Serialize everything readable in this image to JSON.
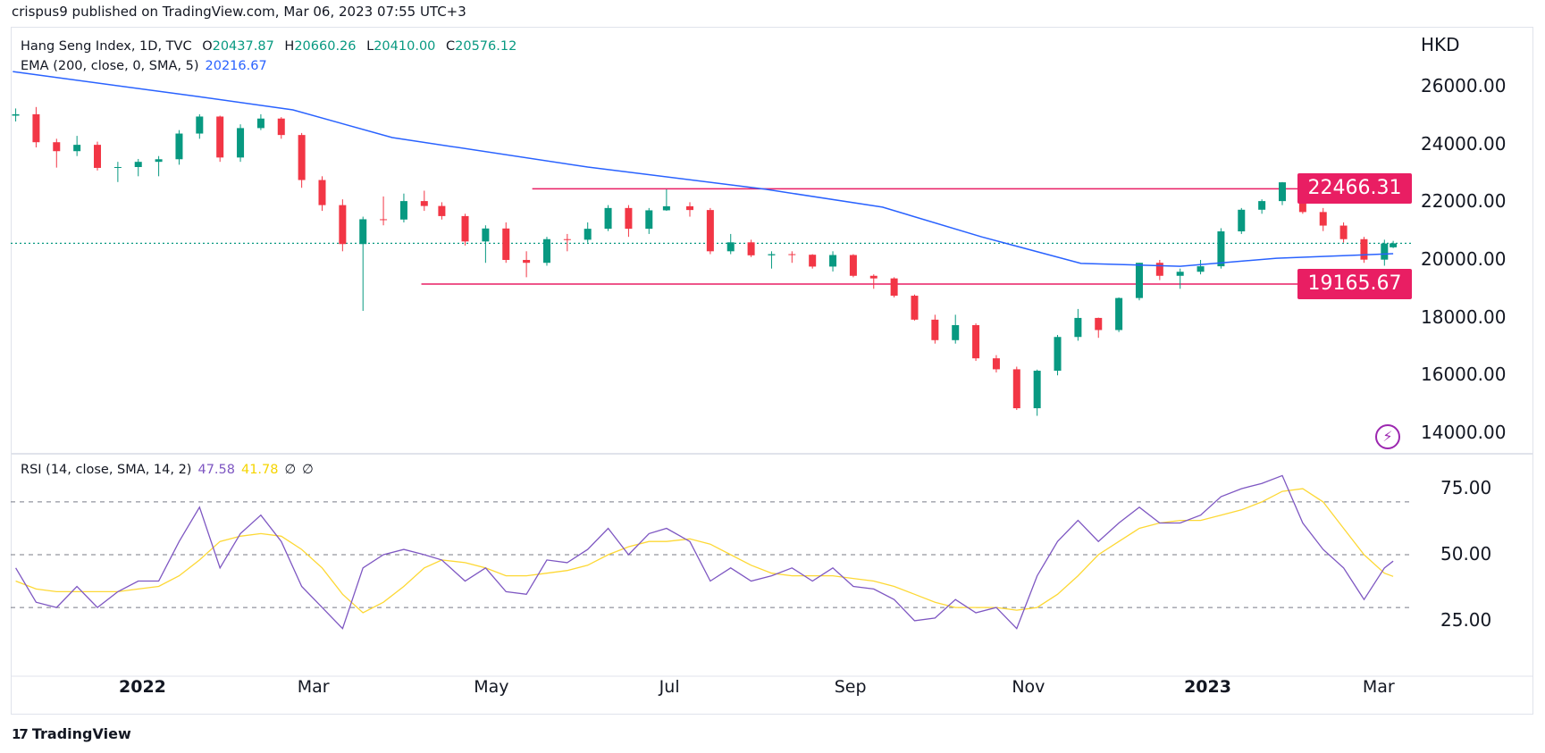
{
  "header": {
    "published": "crispus9 published on TradingView.com, Mar 06, 2023 07:55 UTC+3"
  },
  "legend": {
    "symbol": "Hang Seng Index, 1D, TVC",
    "o_label": "O",
    "o": "20437.87",
    "h_label": "H",
    "h": "20660.26",
    "l_label": "L",
    "l": "20410.00",
    "c_label": "C",
    "c": "20576.12",
    "ema_label": "EMA (200, close, 0, SMA, 5)",
    "ema_value": "20216.67",
    "rsi_label": "RSI (14, close, SMA, 14, 2)",
    "rsi_value": "47.58",
    "rsi_ma_value": "41.78",
    "rsi_extra1": "∅",
    "rsi_extra2": "∅"
  },
  "footer": {
    "brand": "TradingView"
  },
  "colors": {
    "up": "#089981",
    "down": "#f23645",
    "ema": "#2962ff",
    "level": "#e91e63",
    "rsi": "#7e57c2",
    "rsi_ma": "#fdd835",
    "last": "#089981"
  },
  "icons": {
    "lightning": "lightning-icon",
    "logo": "tradingview-logo"
  },
  "chart_data": [
    {
      "type": "candlestick",
      "currency": "HKD",
      "price_ticks": [
        "26000.00",
        "24000.00",
        "22000.00",
        "20000.00",
        "18000.00",
        "16000.00",
        "14000.00"
      ],
      "ylim": [
        13800,
        27000
      ],
      "time_ticks": [
        {
          "label": "2022",
          "date": "2022-01-01",
          "bold": true
        },
        {
          "label": "Mar",
          "date": "2022-03-01"
        },
        {
          "label": "May",
          "date": "2022-05-01"
        },
        {
          "label": "Jul",
          "date": "2022-07-01"
        },
        {
          "label": "Sep",
          "date": "2022-09-01"
        },
        {
          "label": "Nov",
          "date": "2022-11-01"
        },
        {
          "label": "2023",
          "date": "2023-01-01",
          "bold": true
        },
        {
          "label": "Mar",
          "date": "2023-03-01"
        }
      ],
      "candles_ohlc": [
        [
          "2021-11-19",
          25000,
          25250,
          24800,
          25050
        ],
        [
          "2021-11-26",
          25050,
          25300,
          23900,
          24080
        ],
        [
          "2021-12-03",
          24080,
          24200,
          23200,
          23770
        ],
        [
          "2021-12-10",
          23770,
          24300,
          23600,
          23990
        ],
        [
          "2021-12-17",
          23990,
          24100,
          23100,
          23190
        ],
        [
          "2021-12-24",
          23190,
          23400,
          22700,
          23220
        ],
        [
          "2021-12-31",
          23220,
          23500,
          22900,
          23400
        ],
        [
          "2022-01-07",
          23400,
          23600,
          22900,
          23490
        ],
        [
          "2022-01-14",
          23490,
          24500,
          23300,
          24380
        ],
        [
          "2022-01-21",
          24380,
          25050,
          24200,
          24970
        ],
        [
          "2022-01-28",
          24970,
          25000,
          23400,
          23550
        ],
        [
          "2022-02-04",
          23550,
          24700,
          23400,
          24570
        ],
        [
          "2022-02-11",
          24570,
          25050,
          24500,
          24900
        ],
        [
          "2022-02-18",
          24900,
          24950,
          24200,
          24330
        ],
        [
          "2022-02-25",
          24330,
          24400,
          22500,
          22770
        ],
        [
          "2022-03-04",
          22770,
          22900,
          21700,
          21900
        ],
        [
          "2022-03-11",
          21900,
          22100,
          20300,
          20550
        ],
        [
          "2022-03-18",
          20550,
          21500,
          18235,
          21410
        ],
        [
          "2022-03-25",
          21410,
          22200,
          21200,
          21400
        ],
        [
          "2022-04-01",
          21400,
          22300,
          21300,
          22040
        ],
        [
          "2022-04-08",
          22040,
          22400,
          21700,
          21870
        ],
        [
          "2022-04-14",
          21870,
          22000,
          21400,
          21520
        ],
        [
          "2022-04-22",
          21520,
          21600,
          20500,
          20640
        ],
        [
          "2022-04-29",
          20640,
          21200,
          19900,
          21090
        ],
        [
          "2022-05-06",
          21090,
          21300,
          19900,
          20000
        ],
        [
          "2022-05-13",
          20000,
          20300,
          19400,
          19900
        ],
        [
          "2022-05-20",
          19900,
          20800,
          19800,
          20720
        ],
        [
          "2022-05-27",
          20720,
          20900,
          20300,
          20700
        ],
        [
          "2022-06-03",
          20700,
          21300,
          20600,
          21080
        ],
        [
          "2022-06-10",
          21080,
          21900,
          21000,
          21800
        ],
        [
          "2022-06-17",
          21800,
          21900,
          20800,
          21080
        ],
        [
          "2022-06-24",
          21080,
          21800,
          20900,
          21720
        ],
        [
          "2022-06-30",
          21720,
          22450,
          21700,
          21860
        ],
        [
          "2022-07-08",
          21860,
          22000,
          21500,
          21730
        ],
        [
          "2022-07-15",
          21730,
          21800,
          20200,
          20300
        ],
        [
          "2022-07-22",
          20300,
          20900,
          20200,
          20610
        ],
        [
          "2022-07-29",
          20610,
          20700,
          20100,
          20160
        ],
        [
          "2022-08-05",
          20160,
          20300,
          19700,
          20200
        ],
        [
          "2022-08-12",
          20200,
          20300,
          19900,
          20180
        ],
        [
          "2022-08-19",
          20180,
          20200,
          19700,
          19770
        ],
        [
          "2022-08-26",
          19770,
          20300,
          19600,
          20170
        ],
        [
          "2022-09-02",
          20170,
          20200,
          19400,
          19450
        ],
        [
          "2022-09-09",
          19450,
          19500,
          19000,
          19360
        ],
        [
          "2022-09-16",
          19360,
          19400,
          18700,
          18760
        ],
        [
          "2022-09-23",
          18760,
          18800,
          17900,
          17930
        ],
        [
          "2022-09-30",
          17930,
          18100,
          17100,
          17220
        ],
        [
          "2022-10-07",
          17220,
          18100,
          17100,
          17740
        ],
        [
          "2022-10-14",
          17740,
          17800,
          16500,
          16590
        ],
        [
          "2022-10-21",
          16590,
          16700,
          16100,
          16210
        ],
        [
          "2022-10-28",
          16210,
          16300,
          14800,
          14860
        ],
        [
          "2022-11-04",
          14860,
          16200,
          14597,
          16160
        ],
        [
          "2022-11-11",
          16160,
          17400,
          16000,
          17330
        ],
        [
          "2022-11-18",
          17330,
          18300,
          17200,
          17990
        ],
        [
          "2022-11-25",
          17990,
          18000,
          17300,
          17570
        ],
        [
          "2022-12-02",
          17570,
          18700,
          17500,
          18680
        ],
        [
          "2022-12-09",
          18680,
          19900,
          18600,
          19900
        ],
        [
          "2022-12-16",
          19900,
          20000,
          19300,
          19450
        ],
        [
          "2022-12-23",
          19450,
          19700,
          19000,
          19590
        ],
        [
          "2022-12-30",
          19590,
          20000,
          19500,
          19780
        ],
        [
          "2023-01-06",
          19780,
          21100,
          19700,
          20990
        ],
        [
          "2023-01-13",
          20990,
          21800,
          20900,
          21740
        ],
        [
          "2023-01-20",
          21740,
          22100,
          21600,
          22040
        ],
        [
          "2023-01-27",
          22040,
          22700,
          21900,
          22690
        ],
        [
          "2023-02-03",
          22690,
          22700,
          21600,
          21660
        ],
        [
          "2023-02-10",
          21660,
          21800,
          21000,
          21190
        ],
        [
          "2023-02-17",
          21190,
          21300,
          20600,
          20720
        ],
        [
          "2023-02-24",
          20720,
          20800,
          19900,
          20010
        ],
        [
          "2023-03-03",
          20010,
          20700,
          19800,
          20570
        ],
        [
          "2023-03-06",
          20437.87,
          20660.26,
          20410,
          20576.12
        ]
      ],
      "ema_200": [
        [
          "2021-11-18",
          26530
        ],
        [
          "2022-01-20",
          25670
        ],
        [
          "2022-02-22",
          25200
        ],
        [
          "2022-03-28",
          24240
        ],
        [
          "2022-06-03",
          23220
        ],
        [
          "2022-08-03",
          22450
        ],
        [
          "2022-09-12",
          21830
        ],
        [
          "2022-10-16",
          20800
        ],
        [
          "2022-11-19",
          19880
        ],
        [
          "2022-12-23",
          19780
        ],
        [
          "2023-01-25",
          20060
        ],
        [
          "2023-03-06",
          20216.67
        ]
      ],
      "horizontal_levels": [
        {
          "value": 22466.31,
          "label": "22466.31",
          "from": "2022-05-15"
        },
        {
          "value": 19165.67,
          "label": "19165.67",
          "from": "2022-04-07"
        }
      ],
      "last_price": 20576.12
    },
    {
      "type": "line",
      "title": "RSI (14, close, SMA, 14, 2)",
      "ticks": [
        "75.00",
        "50.00",
        "25.00"
      ],
      "bands": [
        70,
        50,
        30
      ],
      "ylim": [
        12,
        88
      ],
      "rsi": [
        45,
        32,
        30,
        38,
        30,
        36,
        40,
        40,
        55,
        68,
        45,
        58,
        65,
        55,
        38,
        30,
        22,
        45,
        50,
        52,
        50,
        48,
        40,
        45,
        36,
        35,
        48,
        47,
        52,
        60,
        50,
        58,
        60,
        55,
        40,
        45,
        40,
        42,
        45,
        40,
        45,
        38,
        37,
        33,
        25,
        26,
        33,
        28,
        30,
        22,
        42,
        55,
        63,
        55,
        62,
        68,
        62,
        62,
        65,
        72,
        75,
        77,
        80,
        62,
        52,
        45,
        33,
        45,
        47.58
      ],
      "rsi_ma": [
        40,
        37,
        36,
        36,
        36,
        36,
        37,
        38,
        42,
        48,
        55,
        57,
        58,
        57,
        52,
        45,
        35,
        28,
        32,
        38,
        45,
        48,
        47,
        45,
        42,
        42,
        43,
        44,
        46,
        50,
        53,
        55,
        55,
        56,
        54,
        50,
        46,
        43,
        42,
        42,
        42,
        41,
        40,
        38,
        35,
        32,
        30,
        30,
        30,
        29,
        30,
        35,
        42,
        50,
        55,
        60,
        62,
        63,
        63,
        65,
        67,
        70,
        74,
        75,
        70,
        60,
        50,
        43,
        41.78
      ]
    }
  ]
}
